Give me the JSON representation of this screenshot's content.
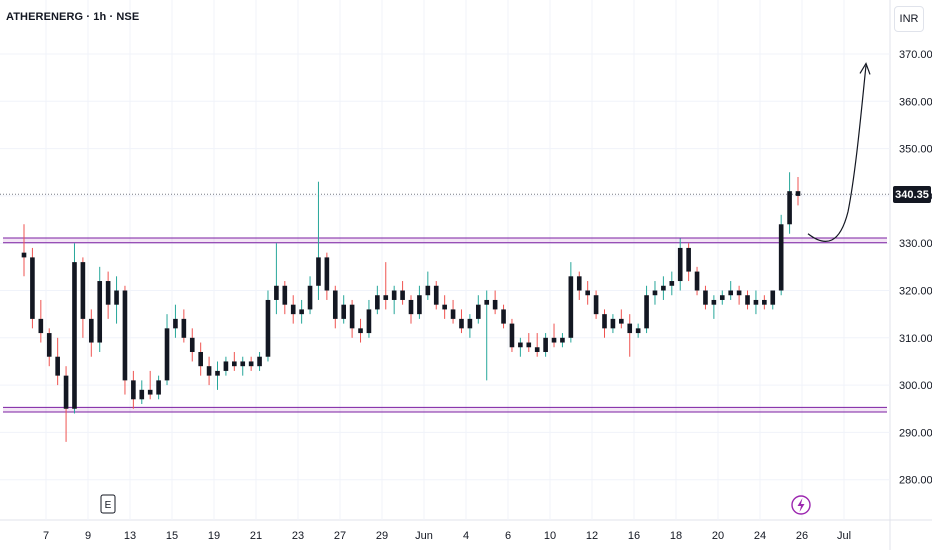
{
  "header": {
    "symbol_line": "ATHERENERG · 1h · NSE",
    "currency": "INR"
  },
  "last_price_label": "340.35",
  "events": {
    "earnings_marker": "E"
  },
  "icons": [
    "flash-icon",
    "arrow-up-curve-icon"
  ],
  "colors": {
    "up": "#26a69a",
    "down": "#ef5350",
    "body": "#131722",
    "zone_line": "#7b1fa2",
    "zone_fill": "#9c27b0"
  },
  "chart_data": {
    "type": "candlestick",
    "ylim": [
      275,
      380
    ],
    "y_ticks": [
      280,
      290,
      300,
      310,
      320,
      330,
      340,
      350,
      360,
      370
    ],
    "y_tick_labels": [
      "280.00",
      "290.00",
      "300.00",
      "310.00",
      "320.00",
      "330.00",
      "340.00",
      "350.00",
      "360.00",
      "370.00"
    ],
    "x_tick_labels": [
      "7",
      "9",
      "13",
      "15",
      "19",
      "21",
      "23",
      "27",
      "29",
      "Jun",
      "4",
      "6",
      "10",
      "12",
      "16",
      "18",
      "20",
      "24",
      "26",
      "Jul"
    ],
    "last_price": 340.35,
    "support_zone": [
      294.3,
      295.3
    ],
    "resistance_zone": [
      330.1,
      331.1
    ],
    "projection": {
      "from_price": 332,
      "to_price": 368
    },
    "bars": [
      {
        "o": 328,
        "h": 334,
        "l": 323,
        "c": 327
      },
      {
        "o": 327,
        "h": 329,
        "l": 312,
        "c": 314
      },
      {
        "o": 314,
        "h": 318,
        "l": 309,
        "c": 311
      },
      {
        "o": 311,
        "h": 312,
        "l": 304,
        "c": 306
      },
      {
        "o": 306,
        "h": 310,
        "l": 300,
        "c": 302
      },
      {
        "o": 302,
        "h": 304,
        "l": 288,
        "c": 295
      },
      {
        "o": 295,
        "h": 330,
        "l": 294,
        "c": 326
      },
      {
        "o": 326,
        "h": 327,
        "l": 310,
        "c": 314
      },
      {
        "o": 314,
        "h": 316,
        "l": 306,
        "c": 309
      },
      {
        "o": 309,
        "h": 325,
        "l": 307,
        "c": 322
      },
      {
        "o": 322,
        "h": 324,
        "l": 314,
        "c": 317
      },
      {
        "o": 317,
        "h": 323,
        "l": 313,
        "c": 320
      },
      {
        "o": 320,
        "h": 321,
        "l": 298,
        "c": 301
      },
      {
        "o": 301,
        "h": 303,
        "l": 295,
        "c": 297
      },
      {
        "o": 297,
        "h": 301,
        "l": 296,
        "c": 299
      },
      {
        "o": 299,
        "h": 303,
        "l": 297,
        "c": 298
      },
      {
        "o": 298,
        "h": 302,
        "l": 297,
        "c": 301
      },
      {
        "o": 301,
        "h": 315,
        "l": 300,
        "c": 312
      },
      {
        "o": 312,
        "h": 317,
        "l": 310,
        "c": 314
      },
      {
        "o": 314,
        "h": 316,
        "l": 309,
        "c": 310
      },
      {
        "o": 310,
        "h": 312,
        "l": 305,
        "c": 307
      },
      {
        "o": 307,
        "h": 309,
        "l": 302,
        "c": 304
      },
      {
        "o": 304,
        "h": 306,
        "l": 300,
        "c": 302
      },
      {
        "o": 302,
        "h": 305,
        "l": 299,
        "c": 303
      },
      {
        "o": 303,
        "h": 306,
        "l": 302,
        "c": 305
      },
      {
        "o": 305,
        "h": 307,
        "l": 303,
        "c": 304
      },
      {
        "o": 304,
        "h": 306,
        "l": 302,
        "c": 305
      },
      {
        "o": 305,
        "h": 306,
        "l": 303,
        "c": 304
      },
      {
        "o": 304,
        "h": 307,
        "l": 303,
        "c": 306
      },
      {
        "o": 306,
        "h": 320,
        "l": 305,
        "c": 318
      },
      {
        "o": 318,
        "h": 330,
        "l": 315,
        "c": 321
      },
      {
        "o": 321,
        "h": 322,
        "l": 315,
        "c": 317
      },
      {
        "o": 317,
        "h": 319,
        "l": 313,
        "c": 315
      },
      {
        "o": 315,
        "h": 318,
        "l": 313,
        "c": 316
      },
      {
        "o": 316,
        "h": 323,
        "l": 315,
        "c": 321
      },
      {
        "o": 321,
        "h": 343,
        "l": 318,
        "c": 327
      },
      {
        "o": 327,
        "h": 328,
        "l": 318,
        "c": 320
      },
      {
        "o": 320,
        "h": 321,
        "l": 312,
        "c": 314
      },
      {
        "o": 314,
        "h": 319,
        "l": 313,
        "c": 317
      },
      {
        "o": 317,
        "h": 318,
        "l": 310,
        "c": 312
      },
      {
        "o": 312,
        "h": 314,
        "l": 309,
        "c": 311
      },
      {
        "o": 311,
        "h": 318,
        "l": 310,
        "c": 316
      },
      {
        "o": 316,
        "h": 321,
        "l": 315,
        "c": 319
      },
      {
        "o": 319,
        "h": 326,
        "l": 316,
        "c": 318
      },
      {
        "o": 318,
        "h": 321,
        "l": 315,
        "c": 320
      },
      {
        "o": 320,
        "h": 322,
        "l": 317,
        "c": 318
      },
      {
        "o": 318,
        "h": 319,
        "l": 313,
        "c": 315
      },
      {
        "o": 315,
        "h": 321,
        "l": 314,
        "c": 319
      },
      {
        "o": 319,
        "h": 324,
        "l": 318,
        "c": 321
      },
      {
        "o": 321,
        "h": 322,
        "l": 316,
        "c": 317
      },
      {
        "o": 317,
        "h": 319,
        "l": 314,
        "c": 316
      },
      {
        "o": 316,
        "h": 318,
        "l": 313,
        "c": 314
      },
      {
        "o": 314,
        "h": 316,
        "l": 311,
        "c": 312
      },
      {
        "o": 312,
        "h": 315,
        "l": 310,
        "c": 314
      },
      {
        "o": 314,
        "h": 319,
        "l": 313,
        "c": 317
      },
      {
        "o": 317,
        "h": 320,
        "l": 301,
        "c": 318
      },
      {
        "o": 318,
        "h": 320,
        "l": 315,
        "c": 316
      },
      {
        "o": 316,
        "h": 317,
        "l": 312,
        "c": 313
      },
      {
        "o": 313,
        "h": 314,
        "l": 307,
        "c": 308
      },
      {
        "o": 308,
        "h": 310,
        "l": 306,
        "c": 309
      },
      {
        "o": 309,
        "h": 311,
        "l": 307,
        "c": 308
      },
      {
        "o": 308,
        "h": 311,
        "l": 306,
        "c": 307
      },
      {
        "o": 307,
        "h": 311,
        "l": 306,
        "c": 310
      },
      {
        "o": 310,
        "h": 313,
        "l": 308,
        "c": 309
      },
      {
        "o": 309,
        "h": 311,
        "l": 308,
        "c": 310
      },
      {
        "o": 310,
        "h": 326,
        "l": 309,
        "c": 323
      },
      {
        "o": 323,
        "h": 324,
        "l": 318,
        "c": 320
      },
      {
        "o": 320,
        "h": 322,
        "l": 317,
        "c": 319
      },
      {
        "o": 319,
        "h": 320,
        "l": 314,
        "c": 315
      },
      {
        "o": 315,
        "h": 316,
        "l": 310,
        "c": 312
      },
      {
        "o": 312,
        "h": 315,
        "l": 311,
        "c": 314
      },
      {
        "o": 314,
        "h": 316,
        "l": 312,
        "c": 313
      },
      {
        "o": 313,
        "h": 315,
        "l": 306,
        "c": 311
      },
      {
        "o": 311,
        "h": 313,
        "l": 310,
        "c": 312
      },
      {
        "o": 312,
        "h": 321,
        "l": 311,
        "c": 319
      },
      {
        "o": 319,
        "h": 322,
        "l": 317,
        "c": 320
      },
      {
        "o": 320,
        "h": 323,
        "l": 318,
        "c": 321
      },
      {
        "o": 321,
        "h": 324,
        "l": 319,
        "c": 322
      },
      {
        "o": 322,
        "h": 331,
        "l": 320,
        "c": 329
      },
      {
        "o": 329,
        "h": 330,
        "l": 322,
        "c": 324
      },
      {
        "o": 324,
        "h": 325,
        "l": 319,
        "c": 320
      },
      {
        "o": 320,
        "h": 321,
        "l": 316,
        "c": 317
      },
      {
        "o": 317,
        "h": 319,
        "l": 314,
        "c": 318
      },
      {
        "o": 318,
        "h": 320,
        "l": 317,
        "c": 319
      },
      {
        "o": 319,
        "h": 322,
        "l": 318,
        "c": 320
      },
      {
        "o": 320,
        "h": 321,
        "l": 317,
        "c": 319
      },
      {
        "o": 319,
        "h": 320,
        "l": 316,
        "c": 317
      },
      {
        "o": 317,
        "h": 320,
        "l": 315,
        "c": 318
      },
      {
        "o": 318,
        "h": 319,
        "l": 316,
        "c": 317
      },
      {
        "o": 317,
        "h": 319,
        "l": 316,
        "c": 320
      },
      {
        "o": 320,
        "h": 336,
        "l": 319,
        "c": 334
      },
      {
        "o": 334,
        "h": 345,
        "l": 332,
        "c": 341
      },
      {
        "o": 341,
        "h": 344,
        "l": 338,
        "c": 340
      }
    ]
  }
}
